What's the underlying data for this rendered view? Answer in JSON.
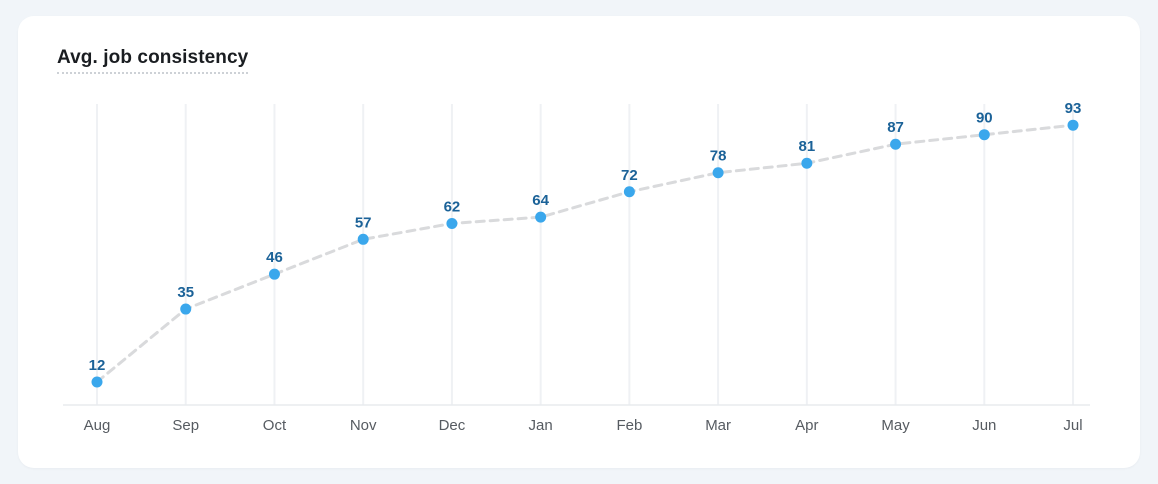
{
  "card": {
    "title": "Avg. job consistency"
  },
  "chart_data": {
    "type": "line",
    "title": "Avg. job consistency",
    "categories": [
      "Aug",
      "Sep",
      "Oct",
      "Nov",
      "Dec",
      "Jan",
      "Feb",
      "Mar",
      "Apr",
      "May",
      "Jun",
      "Jul"
    ],
    "values": [
      12,
      35,
      46,
      57,
      62,
      64,
      72,
      78,
      81,
      87,
      90,
      93
    ],
    "xlabel": "",
    "ylabel": "",
    "ylim": [
      0,
      100
    ],
    "grid": "vertical-only",
    "legend": "none",
    "line_style": "dashed",
    "point_color": "#3aa7ec",
    "value_label_color": "#1b6298",
    "line_color": "#d9dadc"
  },
  "colors": {
    "page_bg": "#f1f5f9",
    "card_bg": "#ffffff",
    "title_text": "#1a1d21",
    "gridline": "#eff1f4",
    "axis_line": "#e8ebee",
    "month_label": "#565b61"
  }
}
